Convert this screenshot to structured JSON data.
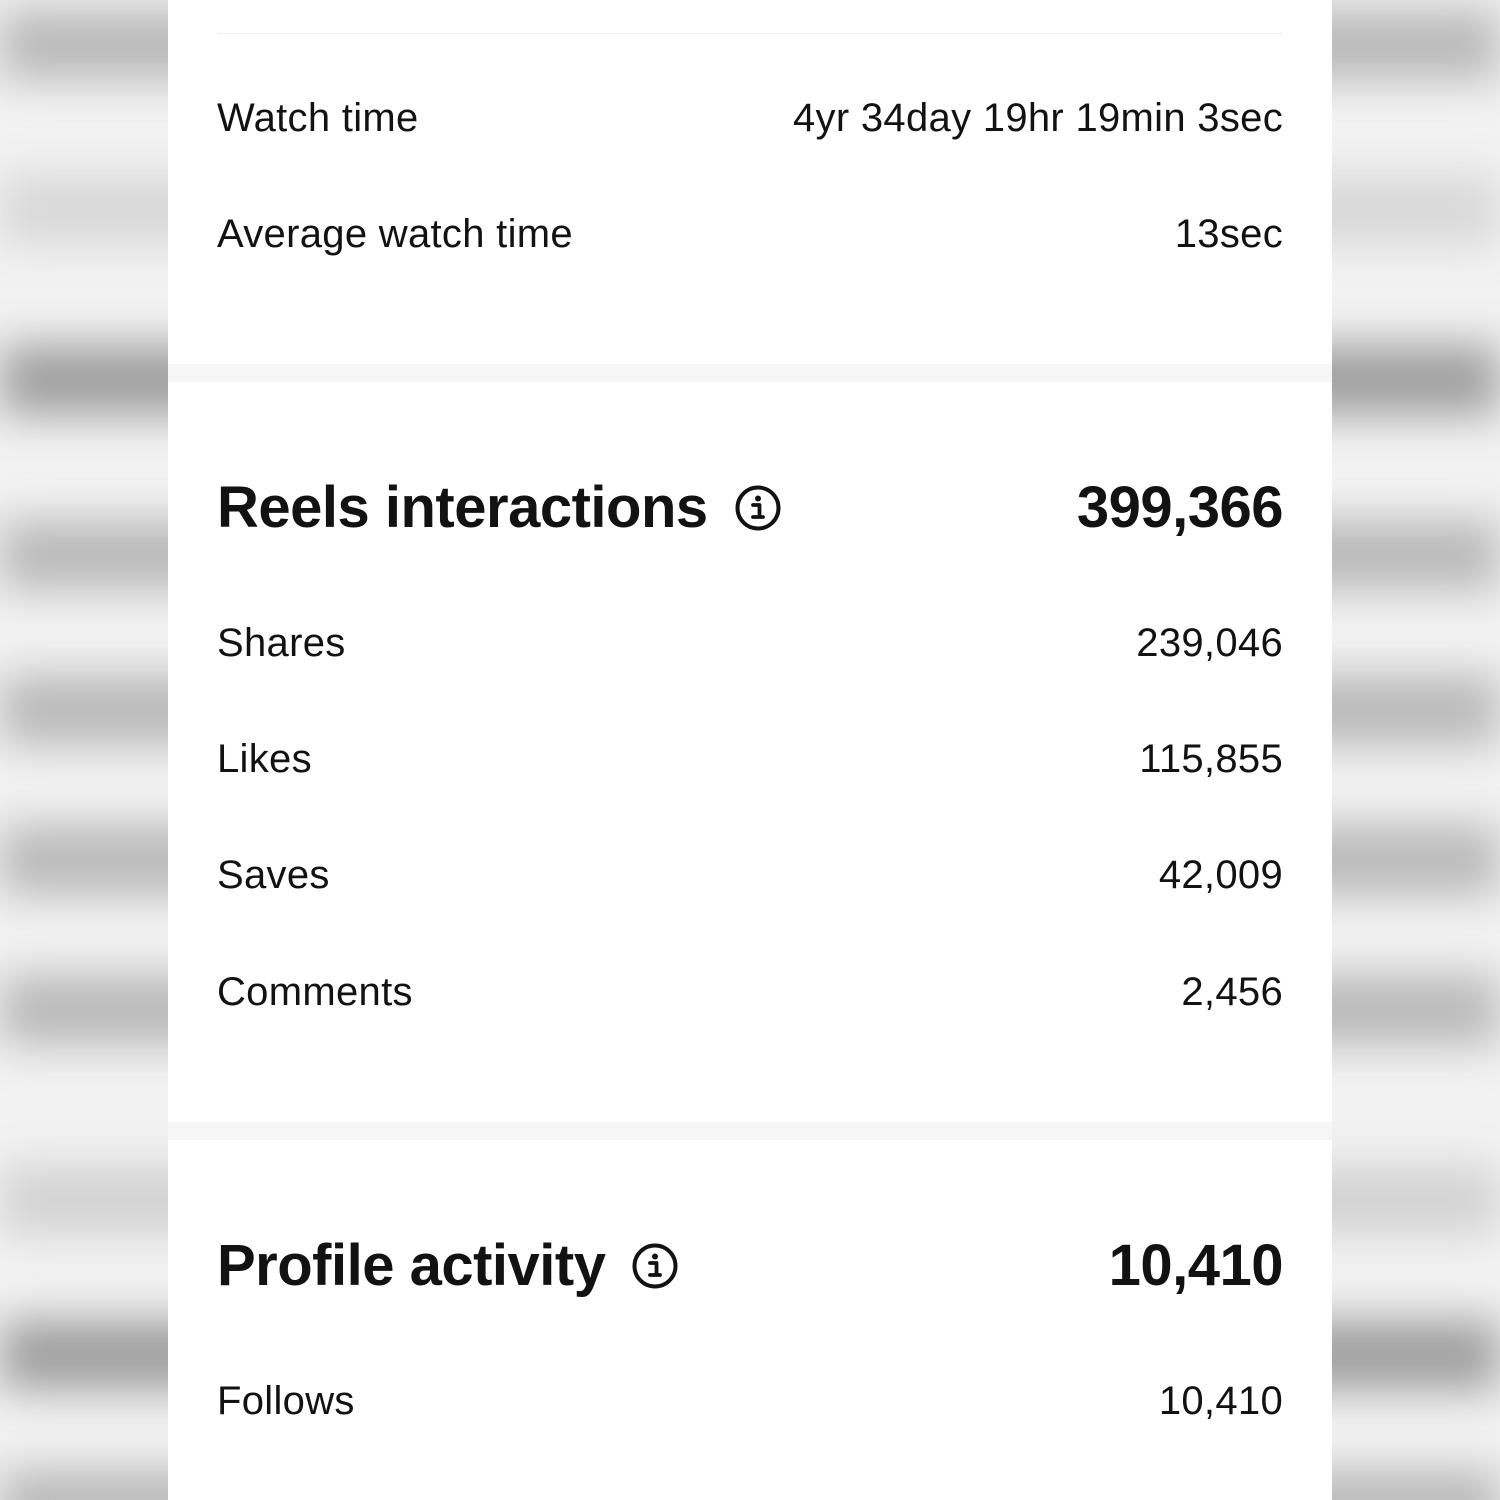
{
  "watch": {
    "watch_time_label": "Watch time",
    "watch_time_value": "4yr 34day 19hr 19min 3sec",
    "avg_watch_time_label": "Average watch time",
    "avg_watch_time_value": "13sec"
  },
  "reels": {
    "title": "Reels interactions",
    "total": "399,366",
    "info_icon": "info-circle-icon",
    "items": [
      {
        "label": "Shares",
        "value": "239,046"
      },
      {
        "label": "Likes",
        "value": "115,855"
      },
      {
        "label": "Saves",
        "value": "42,009"
      },
      {
        "label": "Comments",
        "value": "2,456"
      }
    ]
  },
  "profile": {
    "title": "Profile activity",
    "total": "10,410",
    "info_icon": "info-circle-icon",
    "items": [
      {
        "label": "Follows",
        "value": "10,410"
      }
    ]
  }
}
